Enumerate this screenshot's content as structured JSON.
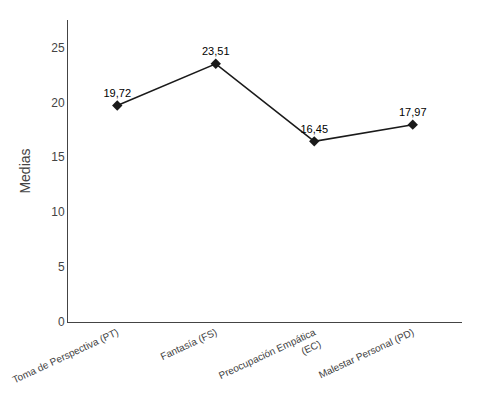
{
  "chart_data": {
    "type": "line",
    "categories": [
      "Toma de Perspectiva (PT)",
      "Fantasía (FS)",
      "Preocupación Empática\n(EC)",
      "Malestar Personal (PD)"
    ],
    "values": [
      19.72,
      23.51,
      16.45,
      17.97
    ],
    "value_labels": [
      "19,72",
      "23,51",
      "16,45",
      "17,97"
    ],
    "data_labels": true,
    "ylabel": "Medias",
    "ylim": [
      0,
      27.5
    ],
    "yticks": [
      0,
      5,
      10,
      15,
      20,
      25
    ],
    "color": "#1a1a1a",
    "marker": "diamond",
    "grid": false
  }
}
